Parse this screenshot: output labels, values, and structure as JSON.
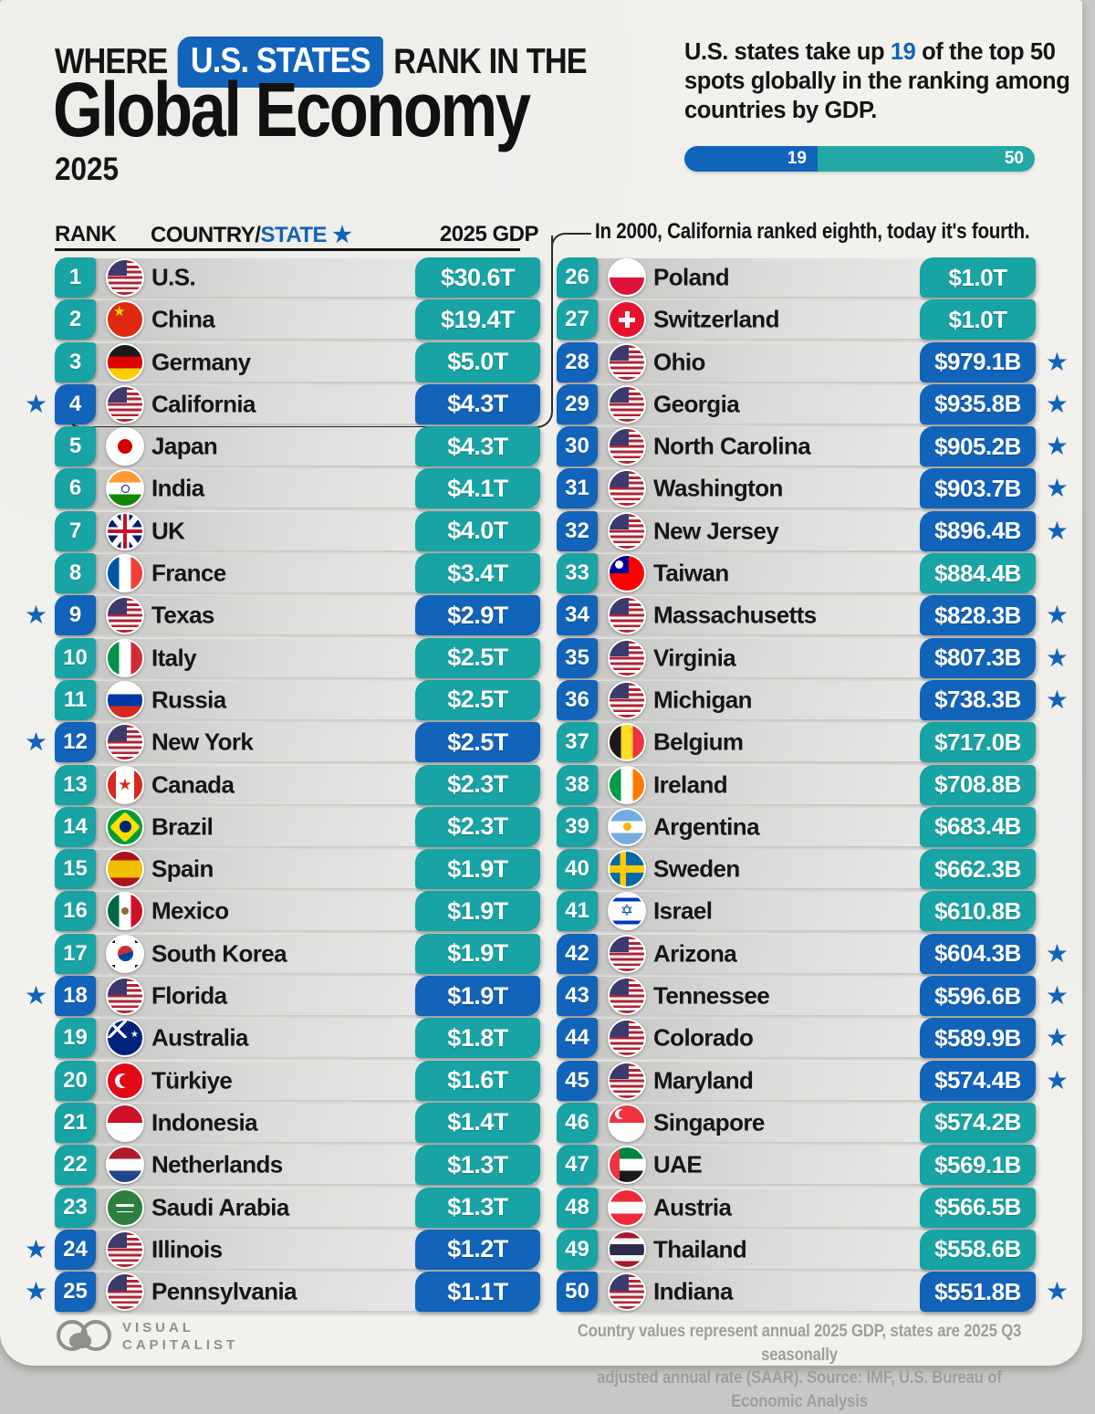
{
  "header": {
    "kicker_prefix": "WHERE",
    "kicker_highlight": "U.S. STATES",
    "kicker_suffix": "RANK IN THE",
    "title": "Global Economy",
    "year": "2025",
    "summary_pre": "U.S. states take up ",
    "summary_num": "19",
    "summary_post": " of the top 50 spots globally in the ranking among countries by GDP.",
    "bar": {
      "states_label": "19",
      "total_label": "50"
    }
  },
  "icons": {
    "star": "★"
  },
  "colors": {
    "accent_blue": "#1263BA",
    "accent_teal": "#18A3A4",
    "bar_teal": "#23A8A6"
  },
  "table": {
    "headers": {
      "rank": "RANK",
      "country_prefix": "COUNTRY/",
      "state": "STATE",
      "star": "★",
      "gdp": "2025 GDP"
    },
    "callout": "In 2000, California ranked eighth, today it's fourth."
  },
  "chart_data": {
    "type": "table",
    "title": "Where U.S. States Rank in the Global Economy 2025",
    "columns": [
      "Rank",
      "Country/State",
      "2025 GDP"
    ],
    "split_at": 25,
    "rows": [
      {
        "rank": 1,
        "name": "U.S.",
        "flag": "us",
        "gdp": "$30.6T",
        "is_state": false
      },
      {
        "rank": 2,
        "name": "China",
        "flag": "china",
        "gdp": "$19.4T",
        "is_state": false
      },
      {
        "rank": 3,
        "name": "Germany",
        "flag": "germany",
        "gdp": "$5.0T",
        "is_state": false
      },
      {
        "rank": 4,
        "name": "California",
        "flag": "us",
        "gdp": "$4.3T",
        "is_state": true
      },
      {
        "rank": 5,
        "name": "Japan",
        "flag": "japan",
        "gdp": "$4.3T",
        "is_state": false
      },
      {
        "rank": 6,
        "name": "India",
        "flag": "india",
        "gdp": "$4.1T",
        "is_state": false
      },
      {
        "rank": 7,
        "name": "UK",
        "flag": "uk",
        "gdp": "$4.0T",
        "is_state": false
      },
      {
        "rank": 8,
        "name": "France",
        "flag": "france",
        "gdp": "$3.4T",
        "is_state": false
      },
      {
        "rank": 9,
        "name": "Texas",
        "flag": "us",
        "gdp": "$2.9T",
        "is_state": true
      },
      {
        "rank": 10,
        "name": "Italy",
        "flag": "italy",
        "gdp": "$2.5T",
        "is_state": false
      },
      {
        "rank": 11,
        "name": "Russia",
        "flag": "russia",
        "gdp": "$2.5T",
        "is_state": false
      },
      {
        "rank": 12,
        "name": "New York",
        "flag": "us",
        "gdp": "$2.5T",
        "is_state": true
      },
      {
        "rank": 13,
        "name": "Canada",
        "flag": "canada",
        "gdp": "$2.3T",
        "is_state": false
      },
      {
        "rank": 14,
        "name": "Brazil",
        "flag": "brazil",
        "gdp": "$2.3T",
        "is_state": false
      },
      {
        "rank": 15,
        "name": "Spain",
        "flag": "spain",
        "gdp": "$1.9T",
        "is_state": false
      },
      {
        "rank": 16,
        "name": "Mexico",
        "flag": "mexico",
        "gdp": "$1.9T",
        "is_state": false
      },
      {
        "rank": 17,
        "name": "South Korea",
        "flag": "southkorea",
        "gdp": "$1.9T",
        "is_state": false
      },
      {
        "rank": 18,
        "name": "Florida",
        "flag": "us",
        "gdp": "$1.9T",
        "is_state": true
      },
      {
        "rank": 19,
        "name": "Australia",
        "flag": "australia",
        "gdp": "$1.8T",
        "is_state": false
      },
      {
        "rank": 20,
        "name": "Türkiye",
        "flag": "turkiye",
        "gdp": "$1.6T",
        "is_state": false
      },
      {
        "rank": 21,
        "name": "Indonesia",
        "flag": "indonesia",
        "gdp": "$1.4T",
        "is_state": false
      },
      {
        "rank": 22,
        "name": "Netherlands",
        "flag": "netherlands",
        "gdp": "$1.3T",
        "is_state": false
      },
      {
        "rank": 23,
        "name": "Saudi Arabia",
        "flag": "saudiarabia",
        "gdp": "$1.3T",
        "is_state": false
      },
      {
        "rank": 24,
        "name": "Illinois",
        "flag": "us",
        "gdp": "$1.2T",
        "is_state": true
      },
      {
        "rank": 25,
        "name": "Pennsylvania",
        "flag": "us",
        "gdp": "$1.1T",
        "is_state": true
      },
      {
        "rank": 26,
        "name": "Poland",
        "flag": "poland",
        "gdp": "$1.0T",
        "is_state": false
      },
      {
        "rank": 27,
        "name": "Switzerland",
        "flag": "switzerland",
        "gdp": "$1.0T",
        "is_state": false
      },
      {
        "rank": 28,
        "name": "Ohio",
        "flag": "us",
        "gdp": "$979.1B",
        "is_state": true
      },
      {
        "rank": 29,
        "name": "Georgia",
        "flag": "us",
        "gdp": "$935.8B",
        "is_state": true
      },
      {
        "rank": 30,
        "name": "North Carolina",
        "flag": "us",
        "gdp": "$905.2B",
        "is_state": true
      },
      {
        "rank": 31,
        "name": "Washington",
        "flag": "us",
        "gdp": "$903.7B",
        "is_state": true
      },
      {
        "rank": 32,
        "name": "New Jersey",
        "flag": "us",
        "gdp": "$896.4B",
        "is_state": true
      },
      {
        "rank": 33,
        "name": "Taiwan",
        "flag": "taiwan",
        "gdp": "$884.4B",
        "is_state": false
      },
      {
        "rank": 34,
        "name": "Massachusetts",
        "flag": "us",
        "gdp": "$828.3B",
        "is_state": true
      },
      {
        "rank": 35,
        "name": "Virginia",
        "flag": "us",
        "gdp": "$807.3B",
        "is_state": true
      },
      {
        "rank": 36,
        "name": "Michigan",
        "flag": "us",
        "gdp": "$738.3B",
        "is_state": true
      },
      {
        "rank": 37,
        "name": "Belgium",
        "flag": "belgium",
        "gdp": "$717.0B",
        "is_state": false
      },
      {
        "rank": 38,
        "name": "Ireland",
        "flag": "ireland",
        "gdp": "$708.8B",
        "is_state": false
      },
      {
        "rank": 39,
        "name": "Argentina",
        "flag": "argentina",
        "gdp": "$683.4B",
        "is_state": false
      },
      {
        "rank": 40,
        "name": "Sweden",
        "flag": "sweden",
        "gdp": "$662.3B",
        "is_state": false
      },
      {
        "rank": 41,
        "name": "Israel",
        "flag": "israel",
        "gdp": "$610.8B",
        "is_state": false
      },
      {
        "rank": 42,
        "name": "Arizona",
        "flag": "us",
        "gdp": "$604.3B",
        "is_state": true
      },
      {
        "rank": 43,
        "name": "Tennessee",
        "flag": "us",
        "gdp": "$596.6B",
        "is_state": true
      },
      {
        "rank": 44,
        "name": "Colorado",
        "flag": "us",
        "gdp": "$589.9B",
        "is_state": true
      },
      {
        "rank": 45,
        "name": "Maryland",
        "flag": "us",
        "gdp": "$574.4B",
        "is_state": true
      },
      {
        "rank": 46,
        "name": "Singapore",
        "flag": "singapore",
        "gdp": "$574.2B",
        "is_state": false
      },
      {
        "rank": 47,
        "name": "UAE",
        "flag": "uae",
        "gdp": "$569.1B",
        "is_state": false
      },
      {
        "rank": 48,
        "name": "Austria",
        "flag": "austria",
        "gdp": "$566.5B",
        "is_state": false
      },
      {
        "rank": 49,
        "name": "Thailand",
        "flag": "thailand",
        "gdp": "$558.6B",
        "is_state": false
      },
      {
        "rank": 50,
        "name": "Indiana",
        "flag": "us",
        "gdp": "$551.8B",
        "is_state": true
      }
    ]
  },
  "footer": {
    "logo_line1": "VISUAL",
    "logo_line2": "CAPITALIST",
    "note_line1": "Country values represent annual 2025 GDP, states are 2025 Q3 seasonally",
    "note_line2": "adjusted annual rate (SAAR). Source: IMF, U.S. Bureau of Economic Analysis"
  }
}
